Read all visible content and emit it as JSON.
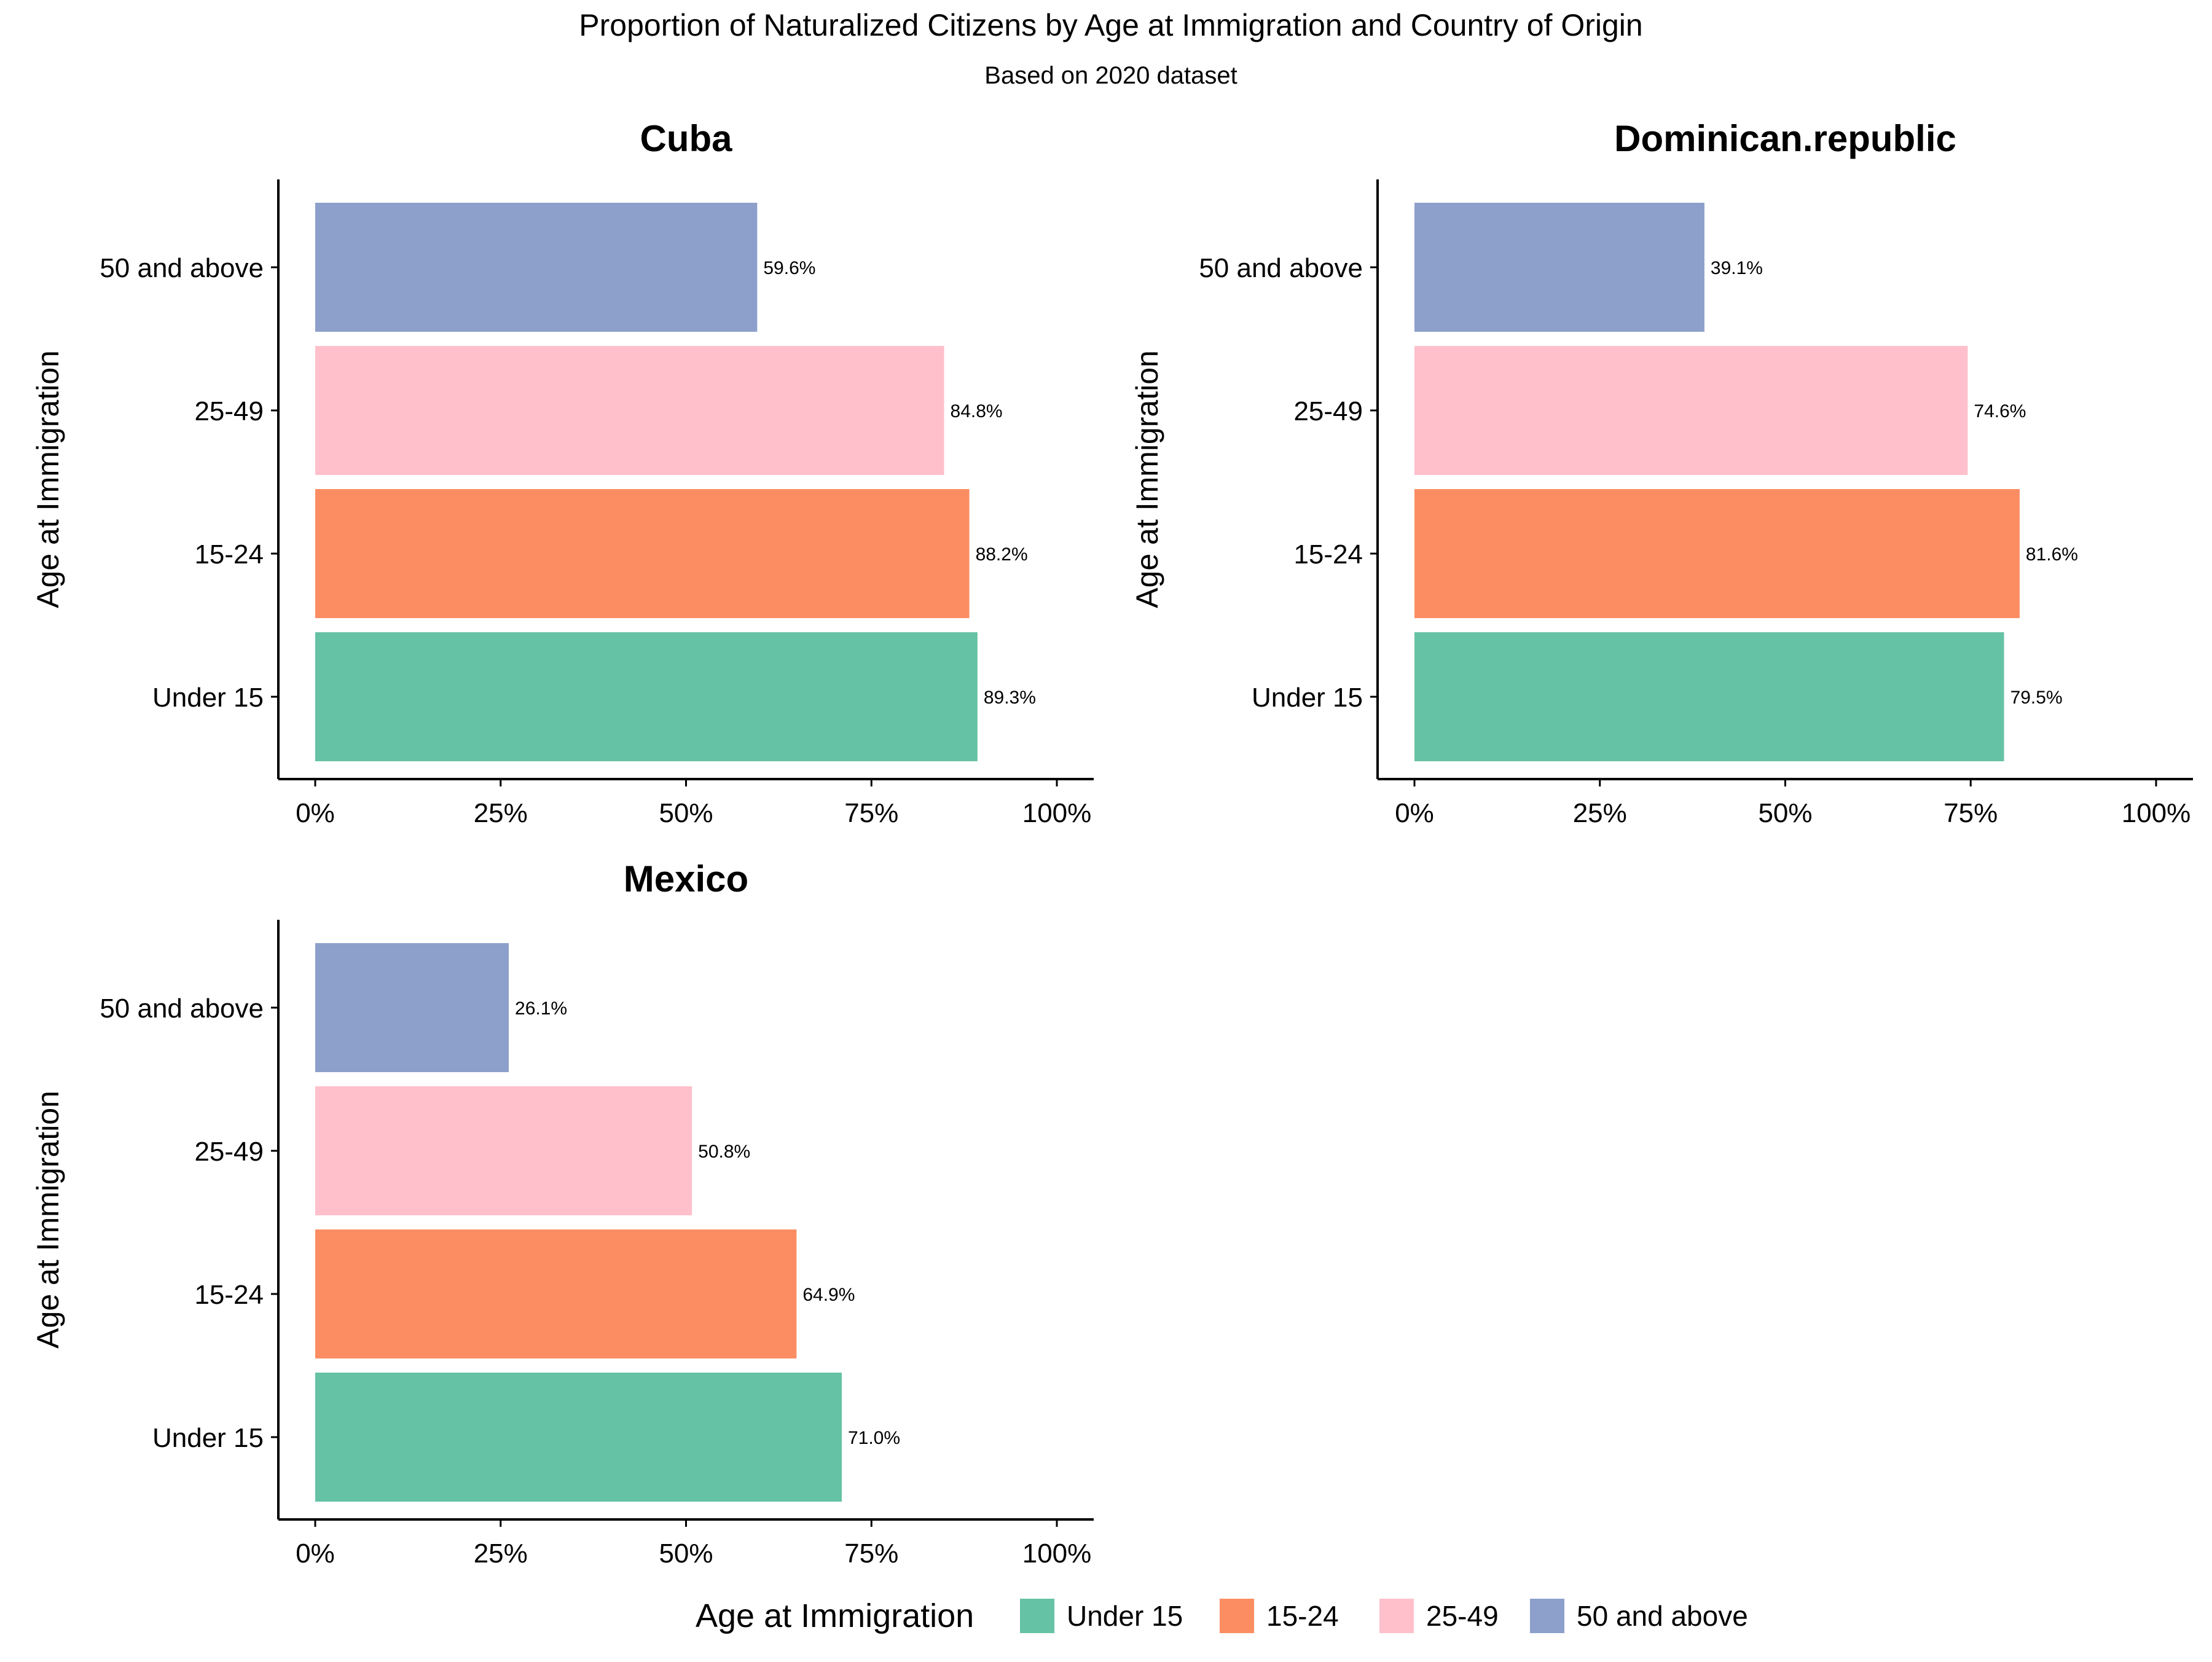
{
  "chart_data": {
    "type": "bar",
    "orientation": "horizontal",
    "title": "Proportion of Naturalized Citizens by Age at Immigration and Country of Origin",
    "subtitle": "Based on 2020 dataset",
    "xlabel": "",
    "ylabel": "Age at Immigration",
    "xlim": [
      0,
      100
    ],
    "x_ticks": [
      "0%",
      "25%",
      "50%",
      "75%",
      "100%"
    ],
    "categories": [
      "Under 15",
      "15-24",
      "25-49",
      "50 and above"
    ],
    "colors": [
      "#66c2a5",
      "#fc8d62",
      "#ffc0cb",
      "#8da0cb"
    ],
    "grid": false,
    "legend": {
      "title": "Age at Immigration",
      "position": "bottom",
      "entries": [
        "Under 15",
        "15-24",
        "25-49",
        "50 and above"
      ]
    },
    "panels": [
      {
        "name": "Cuba",
        "values": [
          89.3,
          88.2,
          84.8,
          59.6
        ],
        "labels": [
          "89.3%",
          "88.2%",
          "84.8%",
          "59.6%"
        ]
      },
      {
        "name": "Dominican.republic",
        "values": [
          79.5,
          81.6,
          74.6,
          39.1
        ],
        "labels": [
          "79.5%",
          "81.6%",
          "74.6%",
          "39.1%"
        ]
      },
      {
        "name": "Mexico",
        "values": [
          71.0,
          64.9,
          50.8,
          26.1
        ],
        "labels": [
          "71.0%",
          "64.9%",
          "50.8%",
          "26.1%"
        ]
      }
    ]
  }
}
